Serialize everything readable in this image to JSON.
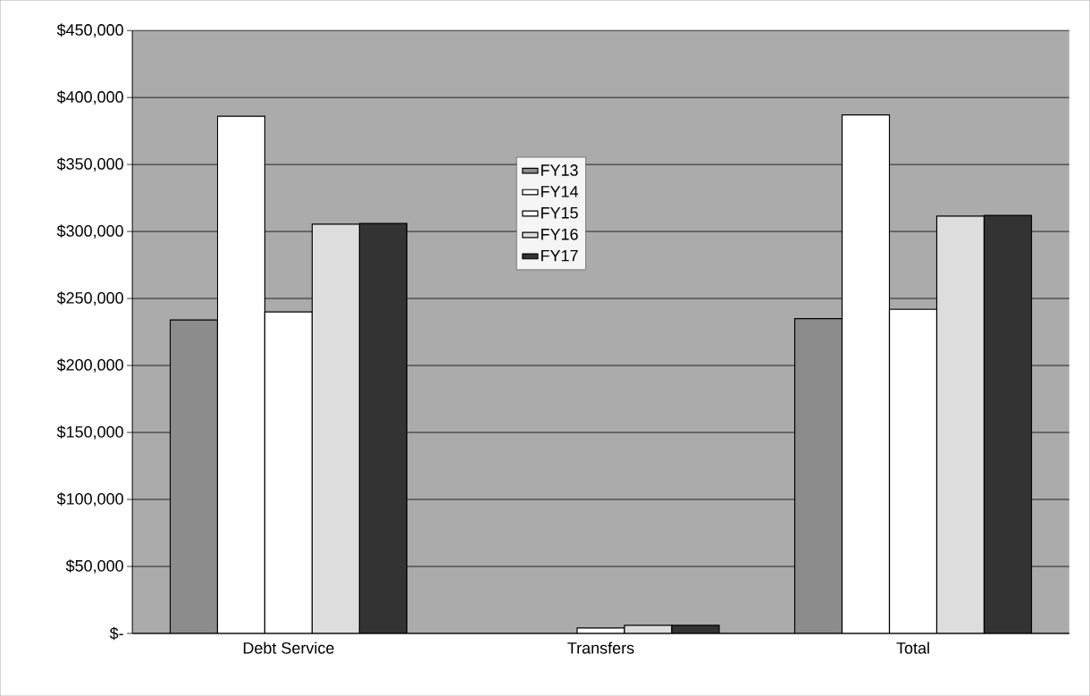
{
  "chart_data": {
    "type": "bar",
    "categories": [
      "Debt Service",
      "Transfers",
      "Total"
    ],
    "series": [
      {
        "name": "FY13",
        "color": "#8c8c8c",
        "values": [
          234000,
          0,
          235000
        ]
      },
      {
        "name": "FY14",
        "color": "#ffffff",
        "values": [
          386000,
          0,
          387000
        ]
      },
      {
        "name": "FY15",
        "color": "#ffffff",
        "values": [
          240000,
          4000,
          242000
        ]
      },
      {
        "name": "FY16",
        "color": "#dddddd",
        "values": [
          305500,
          6000,
          311500
        ]
      },
      {
        "name": "FY17",
        "color": "#333333",
        "values": [
          306000,
          6000,
          312000
        ]
      }
    ],
    "ylim": [
      0,
      450000
    ],
    "yticks": [
      {
        "value": 0,
        "label": "$-"
      },
      {
        "value": 50000,
        "label": "$50,000"
      },
      {
        "value": 100000,
        "label": "$100,000"
      },
      {
        "value": 150000,
        "label": "$150,000"
      },
      {
        "value": 200000,
        "label": "$200,000"
      },
      {
        "value": 250000,
        "label": "$250,000"
      },
      {
        "value": 300000,
        "label": "$300,000"
      },
      {
        "value": 350000,
        "label": "$350,000"
      },
      {
        "value": 400000,
        "label": "$400,000"
      },
      {
        "value": 450000,
        "label": "$450,000"
      }
    ],
    "grid": "y",
    "legend": "top"
  }
}
